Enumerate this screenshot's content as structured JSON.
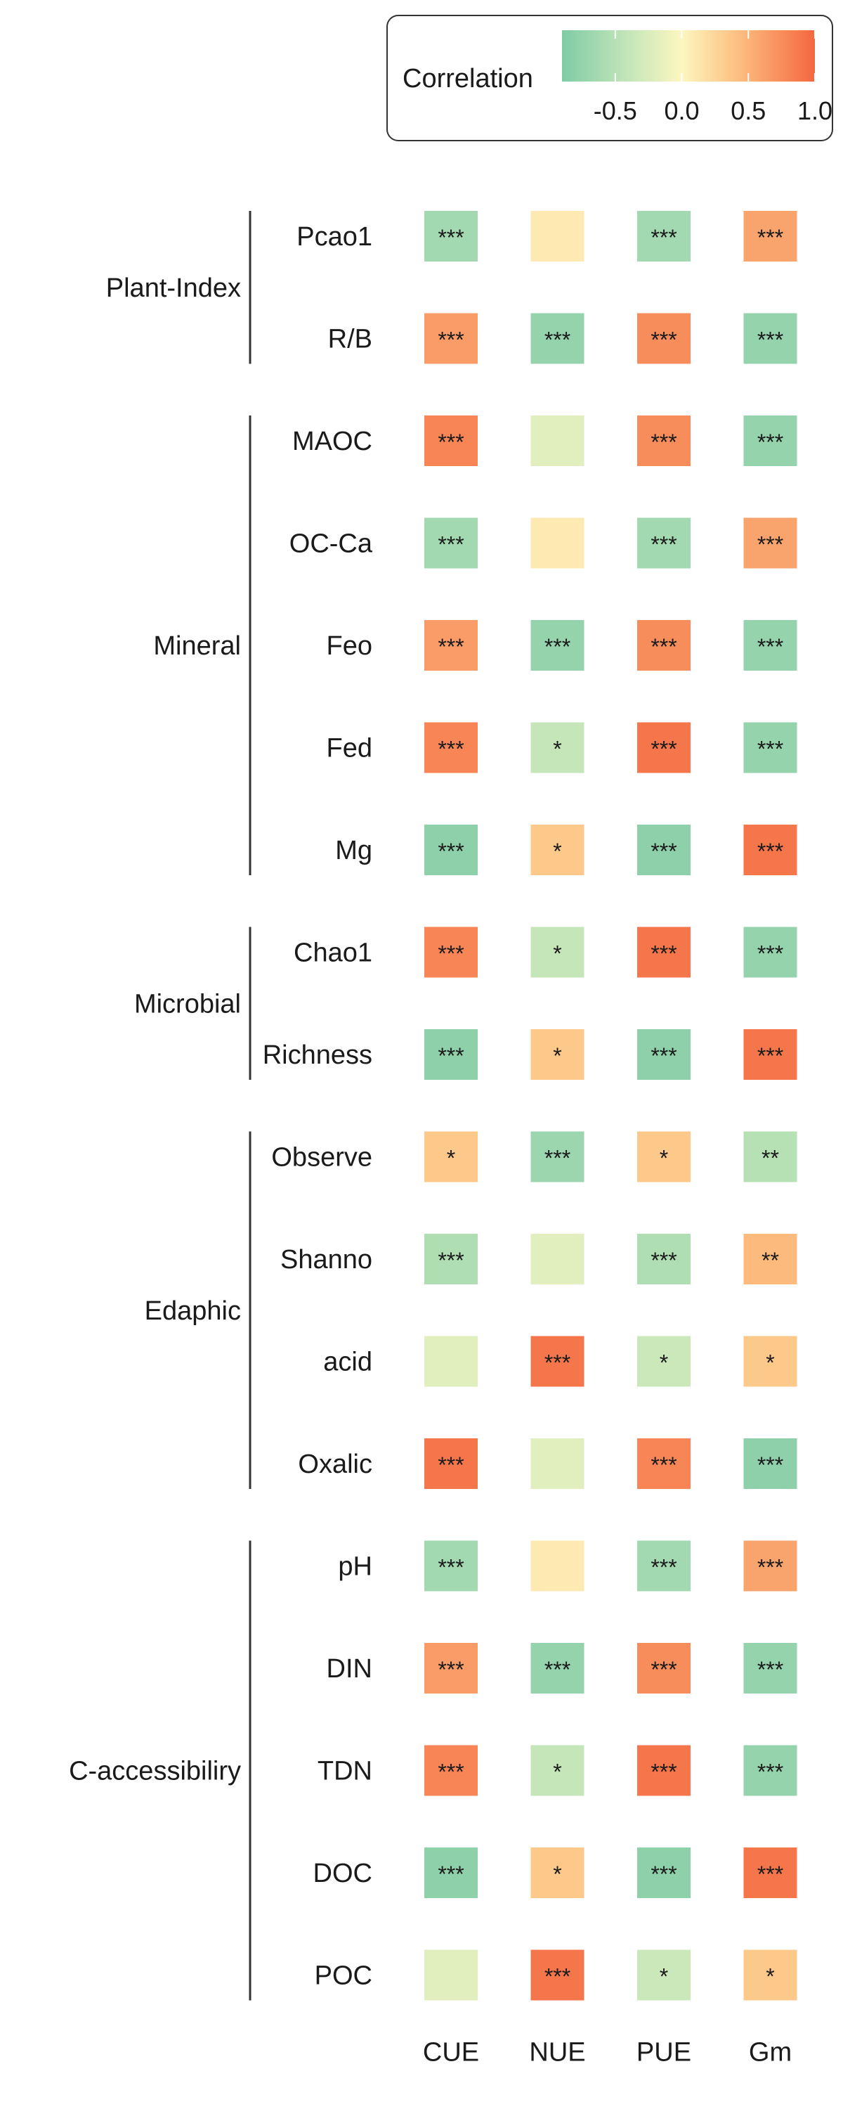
{
  "chart_data": {
    "type": "heatmap",
    "title": "",
    "columns": [
      "CUE",
      "NUE",
      "PUE",
      "Gm"
    ],
    "groups": [
      {
        "name": "Plant-Index",
        "rows": [
          "Pcao1",
          "R/B"
        ]
      },
      {
        "name": "Mineral",
        "rows": [
          "MAOC",
          "OC-Ca",
          "Feo",
          "Fed",
          "Mg"
        ]
      },
      {
        "name": "Microbial",
        "rows": [
          "Chao1",
          "Richness"
        ]
      },
      {
        "name": "Edaphic",
        "rows": [
          "Observe",
          "Shanno",
          "acid",
          "Oxalic"
        ]
      },
      {
        "name": "C-accessibiliry",
        "rows": [
          "pH",
          "DIN",
          "TDN",
          "DOC",
          "POC"
        ]
      }
    ],
    "values": [
      [
        -0.65,
        0.1,
        -0.65,
        0.6
      ],
      [
        0.65,
        -0.75,
        0.75,
        -0.75
      ],
      [
        0.8,
        -0.2,
        0.75,
        -0.75
      ],
      [
        -0.65,
        0.1,
        -0.65,
        0.6
      ],
      [
        0.65,
        -0.75,
        0.75,
        -0.75
      ],
      [
        0.8,
        -0.4,
        0.9,
        -0.75
      ],
      [
        -0.8,
        0.35,
        -0.8,
        0.9
      ],
      [
        0.8,
        -0.4,
        0.9,
        -0.75
      ],
      [
        -0.8,
        0.35,
        -0.8,
        0.9
      ],
      [
        0.35,
        -0.7,
        0.35,
        -0.5
      ],
      [
        -0.55,
        -0.2,
        -0.55,
        0.45
      ],
      [
        -0.2,
        0.9,
        -0.35,
        0.35
      ],
      [
        0.9,
        -0.2,
        0.8,
        -0.8
      ],
      [
        -0.65,
        0.1,
        -0.65,
        0.6
      ],
      [
        0.65,
        -0.75,
        0.75,
        -0.75
      ],
      [
        0.8,
        -0.4,
        0.9,
        -0.75
      ],
      [
        -0.8,
        0.35,
        -0.8,
        0.9
      ],
      [
        -0.2,
        0.9,
        -0.35,
        0.35
      ]
    ],
    "significance": [
      [
        "***",
        "",
        "***",
        "***"
      ],
      [
        "***",
        "***",
        "***",
        "***"
      ],
      [
        "***",
        "",
        "***",
        "***"
      ],
      [
        "***",
        "",
        "***",
        "***"
      ],
      [
        "***",
        "***",
        "***",
        "***"
      ],
      [
        "***",
        "*",
        "***",
        "***"
      ],
      [
        "***",
        "*",
        "***",
        "***"
      ],
      [
        "***",
        "*",
        "***",
        "***"
      ],
      [
        "***",
        "*",
        "***",
        "***"
      ],
      [
        "*",
        "***",
        "*",
        "**"
      ],
      [
        "***",
        "",
        "***",
        "**"
      ],
      [
        "",
        "***",
        "*",
        "*"
      ],
      [
        "***",
        "",
        "***",
        "***"
      ],
      [
        "***",
        "",
        "***",
        "***"
      ],
      [
        "***",
        "***",
        "***",
        "***"
      ],
      [
        "***",
        "*",
        "***",
        "***"
      ],
      [
        "***",
        "*",
        "***",
        "***"
      ],
      [
        "",
        "***",
        "*",
        "*"
      ]
    ],
    "legend": {
      "title": "Correlation",
      "ticks": [
        "-0.5",
        "0.0",
        "0.5",
        "1.0"
      ],
      "tick_values": [
        -0.5,
        0.0,
        0.5,
        1.0
      ],
      "range": [
        -0.9,
        1.0
      ],
      "placement": "top-right"
    },
    "colorscale": {
      "stops": [
        {
          "value": -0.9,
          "color": "#7fcba6"
        },
        {
          "value": -0.4,
          "color": "#c4e6b9"
        },
        {
          "value": 0.0,
          "color": "#fdf6c0"
        },
        {
          "value": 0.4,
          "color": "#fdc283"
        },
        {
          "value": 1.0,
          "color": "#f46740"
        }
      ]
    }
  }
}
